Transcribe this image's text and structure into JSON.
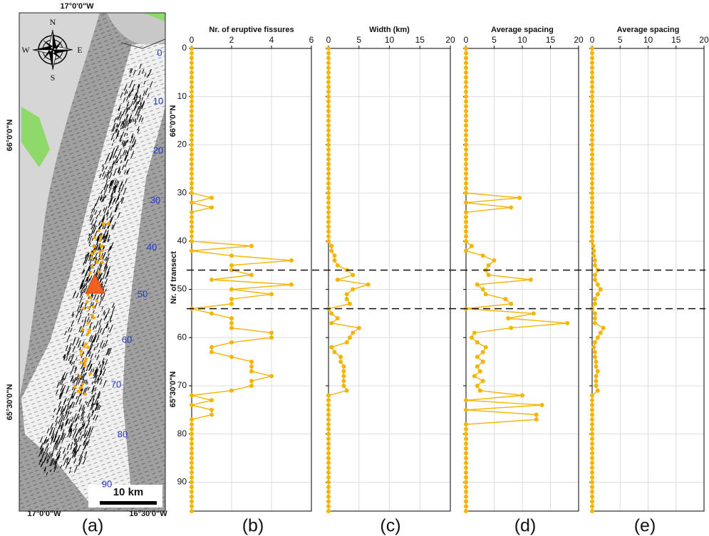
{
  "map": {
    "labels": {
      "top": "17°0'0\"W",
      "left_upper": "66°0'0\"N",
      "left_lower": "65°30'0\"N",
      "right_upper": "66°0'0\"N",
      "right_lower": "65°30'0\"N",
      "bottom_left": "17°0'0\"W",
      "bottom_right": "16°30'0\"W"
    },
    "compass": {
      "n": "N",
      "s": "S",
      "e": "E",
      "w": "W"
    },
    "scale_bar": "10 km",
    "transect_labels": [
      "0",
      "10",
      "20",
      "30",
      "40",
      "50",
      "60",
      "70",
      "80",
      "90"
    ]
  },
  "panel_labels": [
    "(a)",
    "(b)",
    "(c)",
    "(d)",
    "(e)"
  ],
  "reference_transects": [
    46,
    54
  ],
  "chart_data": [
    {
      "type": "line",
      "x_label": "Nr. of eruptive fissures",
      "y_label": "Nr. of transect",
      "show_ytick_labels": true,
      "y_inverted": true,
      "grid": true,
      "xlim": [
        0,
        6
      ],
      "xticks": [
        0,
        2,
        4,
        6
      ],
      "ylim": [
        0,
        96
      ],
      "yticks": [
        0,
        10,
        20,
        30,
        40,
        50,
        60,
        70,
        80,
        90
      ],
      "y": [
        0,
        1,
        2,
        3,
        4,
        5,
        6,
        7,
        8,
        9,
        10,
        11,
        12,
        13,
        14,
        15,
        16,
        17,
        18,
        19,
        20,
        21,
        22,
        23,
        24,
        25,
        26,
        27,
        28,
        29,
        30,
        31,
        32,
        33,
        34,
        35,
        36,
        37,
        38,
        39,
        40,
        41,
        42,
        43,
        44,
        45,
        46,
        47,
        48,
        49,
        50,
        51,
        52,
        53,
        54,
        55,
        56,
        57,
        58,
        59,
        60,
        61,
        62,
        63,
        64,
        65,
        66,
        67,
        68,
        69,
        70,
        71,
        72,
        73,
        74,
        75,
        76,
        77,
        78,
        79,
        80,
        81,
        82,
        83,
        84,
        85,
        86,
        87,
        88,
        89,
        90,
        91,
        92,
        93,
        94,
        95,
        96
      ],
      "series": [
        {
          "color": "#f5b400",
          "values": [
            0,
            0,
            0,
            0,
            0,
            0,
            0,
            0,
            0,
            0,
            0,
            0,
            0,
            0,
            0,
            0,
            0,
            0,
            0,
            0,
            0,
            0,
            0,
            0,
            0,
            0,
            0,
            0,
            0,
            0,
            0,
            1,
            0,
            1,
            0,
            0,
            0,
            0,
            0,
            0,
            0,
            3,
            0,
            2,
            5,
            2,
            2,
            3,
            1,
            5,
            2,
            4,
            2,
            2,
            0,
            1,
            2,
            2,
            2,
            4,
            4,
            2,
            1,
            1,
            2,
            3,
            3,
            3,
            4,
            3,
            3,
            2,
            0,
            1,
            0,
            1,
            1,
            0,
            0,
            0,
            0,
            0,
            0,
            0,
            0,
            0,
            0,
            0,
            0,
            0,
            0,
            0,
            0,
            0,
            0,
            0,
            0
          ]
        }
      ]
    },
    {
      "type": "line",
      "x_label": "Width (km)",
      "show_ytick_labels": false,
      "y_inverted": true,
      "grid": true,
      "xlim": [
        0,
        20
      ],
      "xticks": [
        0,
        5,
        10,
        15,
        20
      ],
      "ylim": [
        0,
        96
      ],
      "yticks": [
        0,
        10,
        20,
        30,
        40,
        50,
        60,
        70,
        80,
        90
      ],
      "y": [
        0,
        1,
        2,
        3,
        4,
        5,
        6,
        7,
        8,
        9,
        10,
        11,
        12,
        13,
        14,
        15,
        16,
        17,
        18,
        19,
        20,
        21,
        22,
        23,
        24,
        25,
        26,
        27,
        28,
        29,
        30,
        31,
        32,
        33,
        34,
        35,
        36,
        37,
        38,
        39,
        40,
        41,
        42,
        43,
        44,
        45,
        46,
        47,
        48,
        49,
        50,
        51,
        52,
        53,
        54,
        55,
        56,
        57,
        58,
        59,
        60,
        61,
        62,
        63,
        64,
        65,
        66,
        67,
        68,
        69,
        70,
        71,
        72,
        73,
        74,
        75,
        76,
        77,
        78,
        79,
        80,
        81,
        82,
        83,
        84,
        85,
        86,
        87,
        88,
        89,
        90,
        91,
        92,
        93,
        94,
        95,
        96
      ],
      "series": [
        {
          "color": "#f5b400",
          "values": [
            0,
            0,
            0,
            0,
            0,
            0,
            0,
            0,
            0,
            0,
            0,
            0,
            0,
            0,
            0,
            0,
            0,
            0,
            0,
            0,
            0,
            0,
            0,
            0,
            0,
            0,
            0,
            0,
            0,
            0,
            0,
            0,
            0,
            0,
            0,
            0,
            0,
            0,
            0,
            0,
            0,
            0.5,
            0.5,
            1,
            1,
            1.5,
            3,
            4,
            1.5,
            6.5,
            4,
            3,
            3,
            3.5,
            0,
            0.5,
            1.5,
            0.5,
            5,
            4,
            3.5,
            3,
            0.5,
            1,
            2,
            2,
            2.5,
            2.5,
            2.5,
            2.5,
            2.5,
            3,
            0,
            0,
            0,
            0,
            0,
            0,
            0,
            0,
            0,
            0,
            0,
            0,
            0,
            0,
            0,
            0,
            0,
            0,
            0,
            0,
            0,
            0,
            0,
            0,
            0
          ]
        }
      ]
    },
    {
      "type": "line",
      "x_label": "Average spacing",
      "show_ytick_labels": false,
      "y_inverted": true,
      "grid": true,
      "xlim": [
        0,
        20
      ],
      "xticks": [
        0,
        5,
        10,
        15,
        20
      ],
      "ylim": [
        0,
        96
      ],
      "yticks": [
        0,
        10,
        20,
        30,
        40,
        50,
        60,
        70,
        80,
        90
      ],
      "y": [
        0,
        1,
        2,
        3,
        4,
        5,
        6,
        7,
        8,
        9,
        10,
        11,
        12,
        13,
        14,
        15,
        16,
        17,
        18,
        19,
        20,
        21,
        22,
        23,
        24,
        25,
        26,
        27,
        28,
        29,
        30,
        31,
        32,
        33,
        34,
        35,
        36,
        37,
        38,
        39,
        40,
        41,
        42,
        43,
        44,
        45,
        46,
        47,
        48,
        49,
        50,
        51,
        52,
        53,
        54,
        55,
        56,
        57,
        58,
        59,
        60,
        61,
        62,
        63,
        64,
        65,
        66,
        67,
        68,
        69,
        70,
        71,
        72,
        73,
        74,
        75,
        76,
        77,
        78,
        79,
        80,
        81,
        82,
        83,
        84,
        85,
        86,
        87,
        88,
        89,
        90,
        91,
        92,
        93,
        94,
        95,
        96
      ],
      "series": [
        {
          "color": "#f5b400",
          "values": [
            0,
            0,
            0,
            0,
            0,
            0,
            0,
            0,
            0,
            0,
            0,
            0,
            0,
            0,
            0,
            0,
            0,
            0,
            0,
            0,
            0,
            0,
            0,
            0,
            0,
            0,
            0,
            0,
            0,
            0,
            0,
            9.5,
            0,
            8,
            0,
            0,
            0,
            0,
            0,
            0,
            0,
            1,
            0,
            3,
            5,
            4,
            3.5,
            4,
            11.5,
            2,
            3,
            3.5,
            7,
            8,
            0,
            12,
            7.5,
            18,
            8,
            1.5,
            1,
            2,
            3.5,
            3,
            2,
            3,
            2,
            2.5,
            1.5,
            3,
            2,
            2.5,
            10,
            0,
            13.5,
            0,
            12.5,
            12.5,
            0,
            0,
            0,
            0,
            0,
            0,
            0,
            0,
            0,
            0,
            0,
            0,
            0,
            0,
            0,
            0,
            0,
            0,
            0
          ]
        }
      ]
    },
    {
      "type": "line",
      "x_label": "Average spacing",
      "show_ytick_labels": false,
      "y_inverted": true,
      "grid": true,
      "xlim": [
        0,
        20
      ],
      "xticks": [
        0,
        5,
        10,
        15,
        20
      ],
      "ylim": [
        0,
        96
      ],
      "yticks": [
        0,
        10,
        20,
        30,
        40,
        50,
        60,
        70,
        80,
        90
      ],
      "y": [
        0,
        1,
        2,
        3,
        4,
        5,
        6,
        7,
        8,
        9,
        10,
        11,
        12,
        13,
        14,
        15,
        16,
        17,
        18,
        19,
        20,
        21,
        22,
        23,
        24,
        25,
        26,
        27,
        28,
        29,
        30,
        31,
        32,
        33,
        34,
        35,
        36,
        37,
        38,
        39,
        40,
        41,
        42,
        43,
        44,
        45,
        46,
        47,
        48,
        49,
        50,
        51,
        52,
        53,
        54,
        55,
        56,
        57,
        58,
        59,
        60,
        61,
        62,
        63,
        64,
        65,
        66,
        67,
        68,
        69,
        70,
        71,
        72,
        73,
        74,
        75,
        76,
        77,
        78,
        79,
        80,
        81,
        82,
        83,
        84,
        85,
        86,
        87,
        88,
        89,
        90,
        91,
        92,
        93,
        94,
        95,
        96
      ],
      "series": [
        {
          "color": "#f5b400",
          "values": [
            0,
            0,
            0,
            0,
            0,
            0,
            0,
            0,
            0,
            0,
            0,
            0,
            0,
            0,
            0,
            0,
            0,
            0,
            0,
            0,
            0,
            0,
            0,
            0,
            0,
            0,
            0,
            0,
            0,
            0,
            0,
            0,
            0,
            0,
            0,
            0,
            0,
            0,
            0,
            0,
            0,
            0.2,
            0.3,
            0.3,
            0.5,
            0.5,
            1,
            0.5,
            0.5,
            1,
            1.5,
            1,
            0.5,
            0.5,
            0,
            0.5,
            0.5,
            0.5,
            2,
            1.5,
            1,
            0.5,
            0.3,
            0.5,
            0.5,
            0.7,
            0.7,
            1,
            0.7,
            0.7,
            0.7,
            1,
            0,
            0,
            0,
            0,
            0,
            0,
            0,
            0,
            0,
            0,
            0,
            0,
            0,
            0,
            0,
            0,
            0,
            0,
            0,
            0,
            0,
            0,
            0,
            0,
            0
          ]
        }
      ]
    }
  ]
}
